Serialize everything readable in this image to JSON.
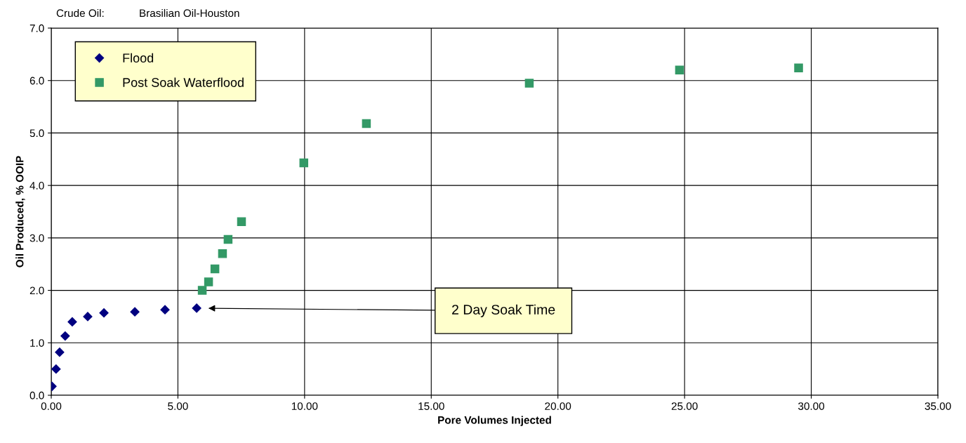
{
  "chart_data": {
    "type": "scatter",
    "xlabel": "Pore Volumes Injected",
    "ylabel": "Oil Produced, % OOIP",
    "annotations": [
      "Crude Oil:",
      "Brasilian Oil-Houston",
      "2 Day Soak Time"
    ],
    "series": [
      {
        "name": "Flood",
        "color": "#000080",
        "marker": "diamond",
        "x": [
          0.03,
          0.19,
          0.33,
          0.55,
          0.83,
          1.44,
          2.08,
          3.3,
          4.49,
          5.74
        ],
        "values": [
          0.17,
          0.5,
          0.82,
          1.13,
          1.4,
          1.5,
          1.57,
          1.59,
          1.63,
          1.66
        ]
      },
      {
        "name": "Post Soak Waterflood",
        "color": "#339966",
        "marker": "square",
        "x": [
          5.96,
          6.21,
          6.46,
          6.76,
          6.98,
          7.51,
          9.97,
          12.44,
          18.87,
          24.8,
          29.5
        ],
        "values": [
          2.0,
          2.16,
          2.41,
          2.7,
          2.97,
          3.31,
          4.43,
          5.18,
          5.95,
          6.2,
          6.24
        ]
      }
    ],
    "xlim": [
      0,
      35
    ],
    "ylim": [
      0,
      7
    ],
    "xticks": [
      {
        "value": 0,
        "label": "0.00"
      },
      {
        "value": 5,
        "label": "5.00"
      },
      {
        "value": 10,
        "label": "10.00"
      },
      {
        "value": 15,
        "label": "15.00"
      },
      {
        "value": 20,
        "label": "20.00"
      },
      {
        "value": 25,
        "label": "25.00"
      },
      {
        "value": 30,
        "label": "30.00"
      },
      {
        "value": 35,
        "label": "35.00"
      }
    ],
    "yticks": [
      {
        "value": 0,
        "label": "0.0"
      },
      {
        "value": 1,
        "label": "1.0"
      },
      {
        "value": 2,
        "label": "2.0"
      },
      {
        "value": 3,
        "label": "3.0"
      },
      {
        "value": 4,
        "label": "4.0"
      },
      {
        "value": 5,
        "label": "5.0"
      },
      {
        "value": 6,
        "label": "6.0"
      },
      {
        "value": 7,
        "label": "7.0"
      }
    ],
    "grid": true,
    "legend": "top left"
  }
}
